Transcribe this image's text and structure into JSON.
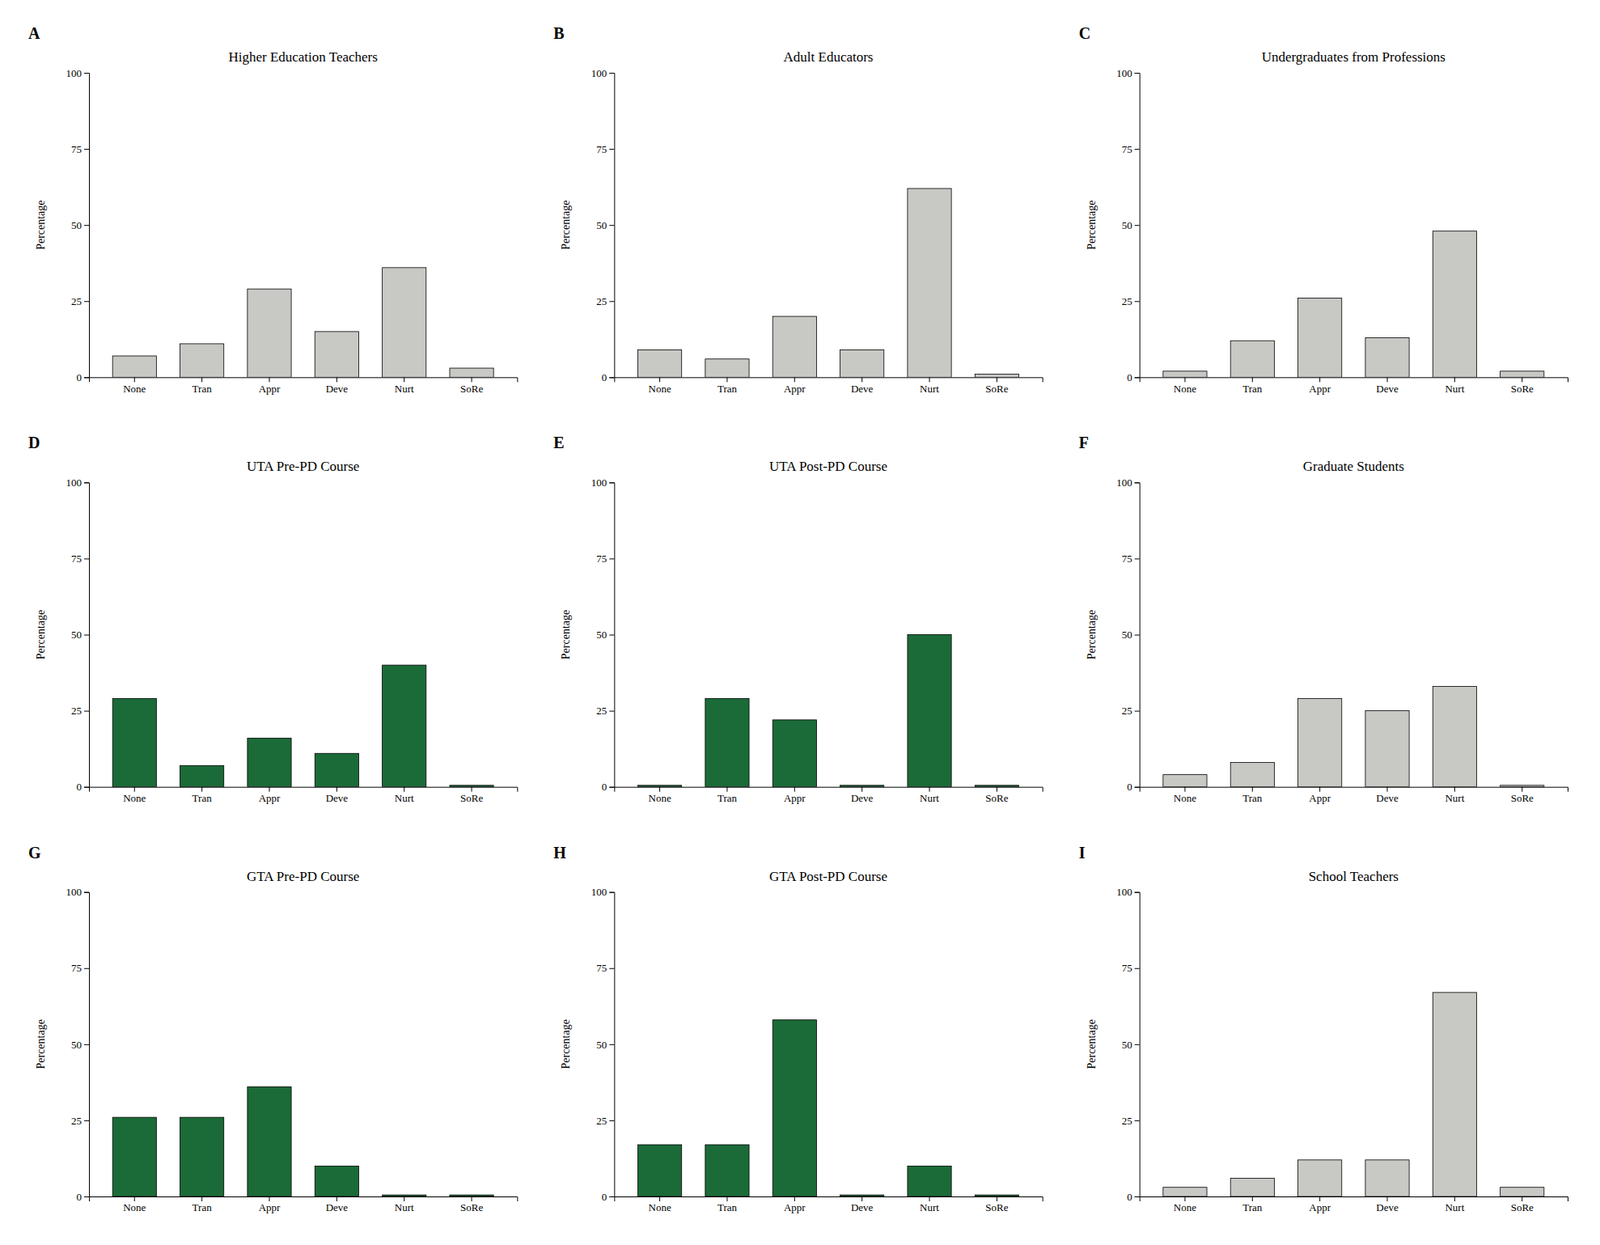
{
  "chart_data": [
    {
      "type": "bar",
      "annotations": [
        "A"
      ],
      "title": "Higher Education Teachers",
      "categories": [
        "None",
        "Tran",
        "Appr",
        "Deve",
        "Nurt",
        "SoRe"
      ],
      "values": [
        7,
        11,
        29,
        15,
        36,
        3
      ],
      "color": "#c8c8c4",
      "ylabel": "Percentage",
      "ylim": [
        0,
        100
      ],
      "yticks": [
        0,
        25,
        50,
        75,
        100
      ],
      "grid": false
    },
    {
      "type": "bar",
      "annotations": [
        "B"
      ],
      "title": "Adult Educators",
      "categories": [
        "None",
        "Tran",
        "Appr",
        "Deve",
        "Nurt",
        "SoRe"
      ],
      "values": [
        9,
        6,
        20,
        9,
        62,
        1
      ],
      "color": "#c8c8c4",
      "ylabel": "Percentage",
      "ylim": [
        0,
        100
      ],
      "yticks": [
        0,
        25,
        50,
        75,
        100
      ],
      "grid": false
    },
    {
      "type": "bar",
      "annotations": [
        "C"
      ],
      "title": "Undergraduates from Professions",
      "categories": [
        "None",
        "Tran",
        "Appr",
        "Deve",
        "Nurt",
        "SoRe"
      ],
      "values": [
        2,
        12,
        26,
        13,
        48,
        2
      ],
      "color": "#c8c8c4",
      "ylabel": "Percentage",
      "ylim": [
        0,
        100
      ],
      "yticks": [
        0,
        25,
        50,
        75,
        100
      ],
      "grid": false
    },
    {
      "type": "bar",
      "annotations": [
        "D"
      ],
      "title": "UTA Pre-PD Course",
      "categories": [
        "None",
        "Tran",
        "Appr",
        "Deve",
        "Nurt",
        "SoRe"
      ],
      "values": [
        29,
        7,
        16,
        11,
        40,
        0.5
      ],
      "color": "#1b6b38",
      "ylabel": "Percentage",
      "ylim": [
        0,
        100
      ],
      "yticks": [
        0,
        25,
        50,
        75,
        100
      ],
      "grid": false
    },
    {
      "type": "bar",
      "annotations": [
        "E"
      ],
      "title": "UTA Post-PD Course",
      "categories": [
        "None",
        "Tran",
        "Appr",
        "Deve",
        "Nurt",
        "SoRe"
      ],
      "values": [
        0.5,
        29,
        22,
        0.5,
        50,
        0.5
      ],
      "color": "#1b6b38",
      "ylabel": "Percentage",
      "ylim": [
        0,
        100
      ],
      "yticks": [
        0,
        25,
        50,
        75,
        100
      ],
      "grid": false
    },
    {
      "type": "bar",
      "annotations": [
        "F"
      ],
      "title": "Graduate Students",
      "categories": [
        "None",
        "Tran",
        "Appr",
        "Deve",
        "Nurt",
        "SoRe"
      ],
      "values": [
        4,
        8,
        29,
        25,
        33,
        0.5
      ],
      "color": "#c8c8c4",
      "ylabel": "Percentage",
      "ylim": [
        0,
        100
      ],
      "yticks": [
        0,
        25,
        50,
        75,
        100
      ],
      "grid": false
    },
    {
      "type": "bar",
      "annotations": [
        "G"
      ],
      "title": "GTA Pre-PD Course",
      "categories": [
        "None",
        "Tran",
        "Appr",
        "Deve",
        "Nurt",
        "SoRe"
      ],
      "values": [
        26,
        26,
        36,
        10,
        0.5,
        0.5
      ],
      "color": "#1b6b38",
      "ylabel": "Percentage",
      "ylim": [
        0,
        100
      ],
      "yticks": [
        0,
        25,
        50,
        75,
        100
      ],
      "grid": false
    },
    {
      "type": "bar",
      "annotations": [
        "H"
      ],
      "title": "GTA Post-PD Course",
      "categories": [
        "None",
        "Tran",
        "Appr",
        "Deve",
        "Nurt",
        "SoRe"
      ],
      "values": [
        17,
        17,
        58,
        0.5,
        10,
        0.5
      ],
      "color": "#1b6b38",
      "ylabel": "Percentage",
      "ylim": [
        0,
        100
      ],
      "yticks": [
        0,
        25,
        50,
        75,
        100
      ],
      "grid": false
    },
    {
      "type": "bar",
      "annotations": [
        "I"
      ],
      "title": "School Teachers",
      "categories": [
        "None",
        "Tran",
        "Appr",
        "Deve",
        "Nurt",
        "SoRe"
      ],
      "values": [
        3,
        6,
        12,
        12,
        67,
        3
      ],
      "color": "#c8c8c4",
      "ylabel": "Percentage",
      "ylim": [
        0,
        100
      ],
      "yticks": [
        0,
        25,
        50,
        75,
        100
      ],
      "grid": false
    }
  ]
}
